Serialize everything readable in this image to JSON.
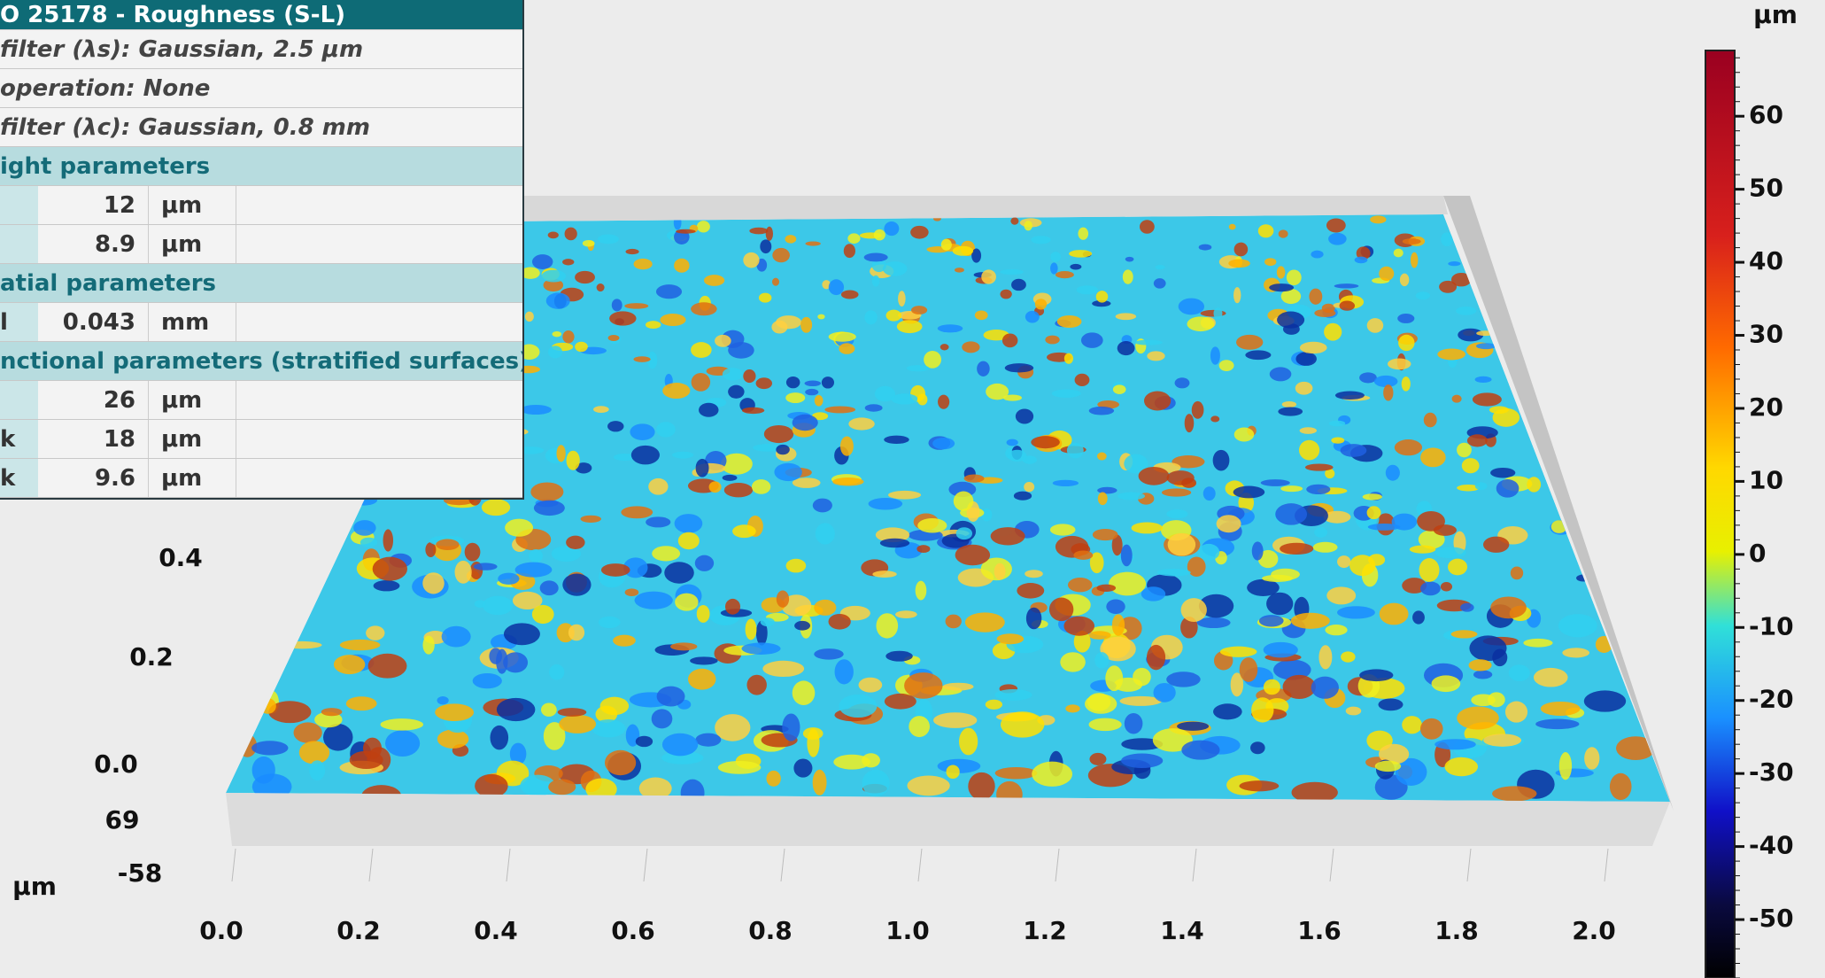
{
  "panel": {
    "title": "O 25178 - Roughness (S-L)",
    "filters": [
      "filter (λs): Gaussian, 2.5 μm",
      "operation: None",
      "filter (λc): Gaussian, 0.8 mm"
    ],
    "sections": [
      {
        "heading": "ight parameters",
        "rows": [
          {
            "value": 12,
            "unit": "μm"
          },
          {
            "value": 8.9,
            "unit": "μm"
          }
        ]
      },
      {
        "heading": "atial parameters",
        "rows": [
          {
            "name": "l",
            "value": 0.043,
            "unit": "mm"
          }
        ]
      },
      {
        "heading": "nctional parameters (stratified surfaces)",
        "rows": [
          {
            "value": 26,
            "unit": "μm"
          },
          {
            "name": "k",
            "value": 18,
            "unit": "μm"
          },
          {
            "name": "k",
            "value": 9.6,
            "unit": "μm"
          }
        ]
      }
    ]
  },
  "x_axis": {
    "ticks": [
      "0.0",
      "0.2",
      "0.4",
      "0.6",
      "0.8",
      "1.0",
      "1.2",
      "1.4",
      "1.6",
      "1.8",
      "2.0"
    ]
  },
  "y_axis": {
    "ticks": [
      "0.0",
      "0.2",
      "0.4"
    ]
  },
  "z_axis": {
    "max": 69,
    "min": -58,
    "unit": "μm"
  },
  "colorbar": {
    "unit": "μm",
    "ticks": [
      60,
      50,
      40,
      30,
      20,
      10,
      0,
      -10,
      -20,
      -30,
      -40,
      -50
    ]
  }
}
